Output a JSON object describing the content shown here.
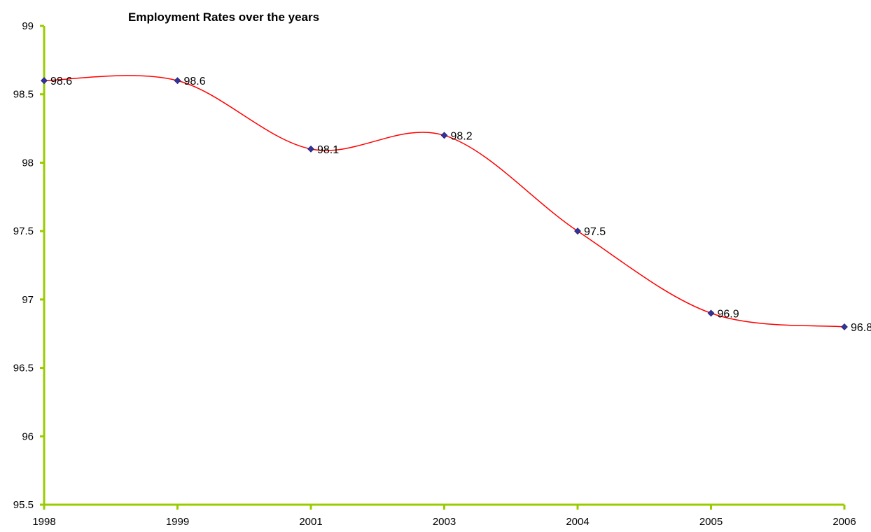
{
  "chart_data": {
    "type": "line",
    "title": "Employment Rates over the years",
    "xlabel": "",
    "ylabel": "",
    "categories": [
      "1998",
      "1999",
      "2001",
      "2003",
      "2004",
      "2005",
      "2006"
    ],
    "series": [
      {
        "values": [
          98.6,
          98.6,
          98.1,
          98.2,
          97.5,
          96.9,
          96.8
        ],
        "line_color": "#ff0000",
        "marker": "diamond",
        "marker_color": "#333399",
        "smoothed": true
      }
    ],
    "data_labels": [
      "98.6",
      "98.6",
      "98.1",
      "98.2",
      "97.5",
      "96.9",
      "96.8"
    ],
    "ylim": [
      95.5,
      99
    ],
    "y_ticks": [
      "95.5",
      "96",
      "96.5",
      "97",
      "97.5",
      "98",
      "98.5",
      "99"
    ],
    "grid": false,
    "legend": "none",
    "axis_color": "#99cc00"
  }
}
